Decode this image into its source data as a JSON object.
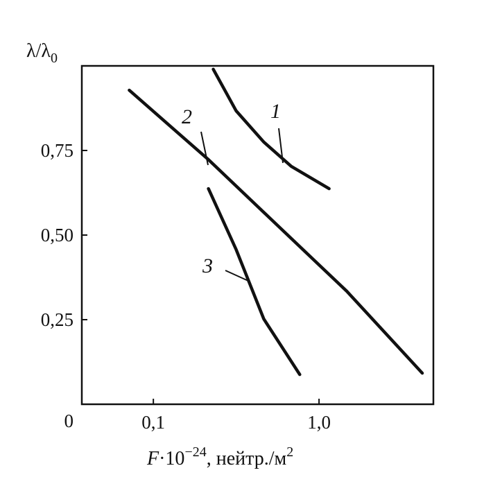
{
  "chart_data": {
    "type": "line",
    "x_log": true,
    "xlim": [
      0.037,
      4.9
    ],
    "ylim": [
      0,
      1
    ],
    "xticks": [
      {
        "value": 0.1,
        "label": "0,1"
      },
      {
        "value": 1,
        "label": "1,0"
      }
    ],
    "yticks": [
      {
        "value": 0,
        "label": "0"
      },
      {
        "value": 0.25,
        "label": "0,25"
      },
      {
        "value": 0.5,
        "label": "0,50"
      },
      {
        "value": 0.75,
        "label": "0,75"
      }
    ],
    "y_label_parts": [
      "λ/λ",
      "0"
    ],
    "x_label_parts": [
      "F",
      "·10",
      "−24",
      ", нейтр./м",
      "2"
    ],
    "series": [
      {
        "name": "1",
        "color": "#111111",
        "x": [
          0.23,
          0.316,
          0.464,
          0.68,
          1.15
        ],
        "values": [
          0.99,
          0.867,
          0.775,
          0.703,
          0.637
        ]
      },
      {
        "name": "2",
        "color": "#111111",
        "x": [
          0.0715,
          0.215,
          0.56,
          1.47,
          4.2
        ],
        "values": [
          0.928,
          0.723,
          0.529,
          0.334,
          0.092
        ]
      },
      {
        "name": "3",
        "color": "#111111",
        "x": [
          0.215,
          0.316,
          0.464,
          0.765
        ],
        "values": [
          0.637,
          0.457,
          0.252,
          0.088
        ]
      }
    ]
  }
}
